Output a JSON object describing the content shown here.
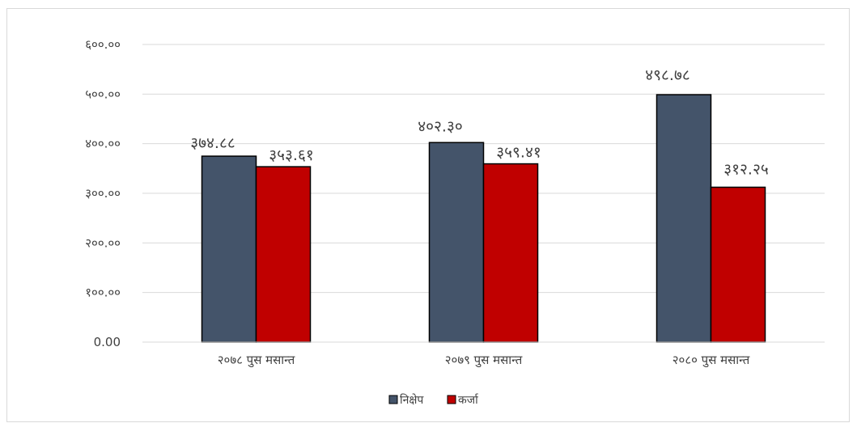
{
  "chart_data": {
    "type": "bar",
    "categories": [
      "२०७८ पुस मसान्त",
      "२०७९ पुस मसान्त",
      "२०८० पुस मसान्त"
    ],
    "series": [
      {
        "name": "निक्षेप",
        "color": "#44546a",
        "values": [
          374.88,
          402.3,
          498.78
        ],
        "labels": [
          "३७४.८८",
          "४०२.३०",
          "४९८.७८"
        ]
      },
      {
        "name": "कर्जा",
        "color": "#c00000",
        "values": [
          353.61,
          359.41,
          312.25
        ],
        "labels": [
          "३५३.६१",
          "३५९.४१",
          "३१२.२५"
        ]
      }
    ],
    "ylim": [
      0,
      600
    ],
    "yticks": [
      0,
      100,
      200,
      300,
      400,
      500,
      600
    ],
    "ytick_labels": [
      "0.00",
      "१००.००",
      "२००.००",
      "३००.००",
      "४००.००",
      "५००.००",
      "६००.००"
    ],
    "grid": true,
    "legend_position": "bottom",
    "title": "",
    "xlabel": "",
    "ylabel": ""
  }
}
